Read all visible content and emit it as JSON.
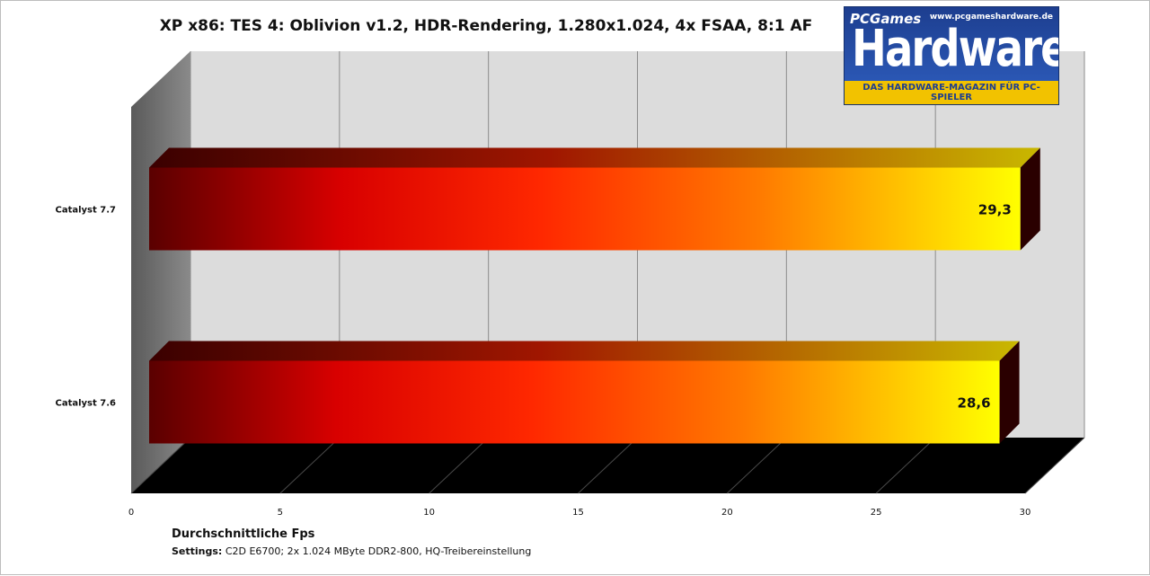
{
  "chart_data": {
    "type": "bar",
    "orientation": "horizontal",
    "title": "XP x86: TES 4: Oblivion v1.2, HDR-Rendering, 1.280x1.024,  4x FSAA, 8:1 AF",
    "categories": [
      "Catalyst 7.7",
      "Catalyst 7.6"
    ],
    "values": [
      29.3,
      28.6
    ],
    "value_labels": [
      "29,3",
      "28,6"
    ],
    "xlabel": "Durchschnittliche  Fps",
    "xlim": [
      0,
      30
    ],
    "xticks": [
      0,
      5,
      10,
      15,
      20,
      25,
      30
    ],
    "grid": true
  },
  "settings": {
    "label": "Settings:",
    "text": " C2D E6700; 2x 1.024 MByte DDR2-800, HQ-Treibereinstellung"
  },
  "logo": {
    "brand": "PCGames",
    "name": "Hardware",
    "url": "www.pcgameshardware.de",
    "tagline": "DAS HARDWARE-MAGAZIN FÜR PC-SPIELER"
  },
  "colors": {
    "bar_dark": "#5a0000",
    "bar_mid": "#ff2a00",
    "bar_light": "#ffff00",
    "floor": "#000000",
    "wall": "#dcdcdc"
  }
}
